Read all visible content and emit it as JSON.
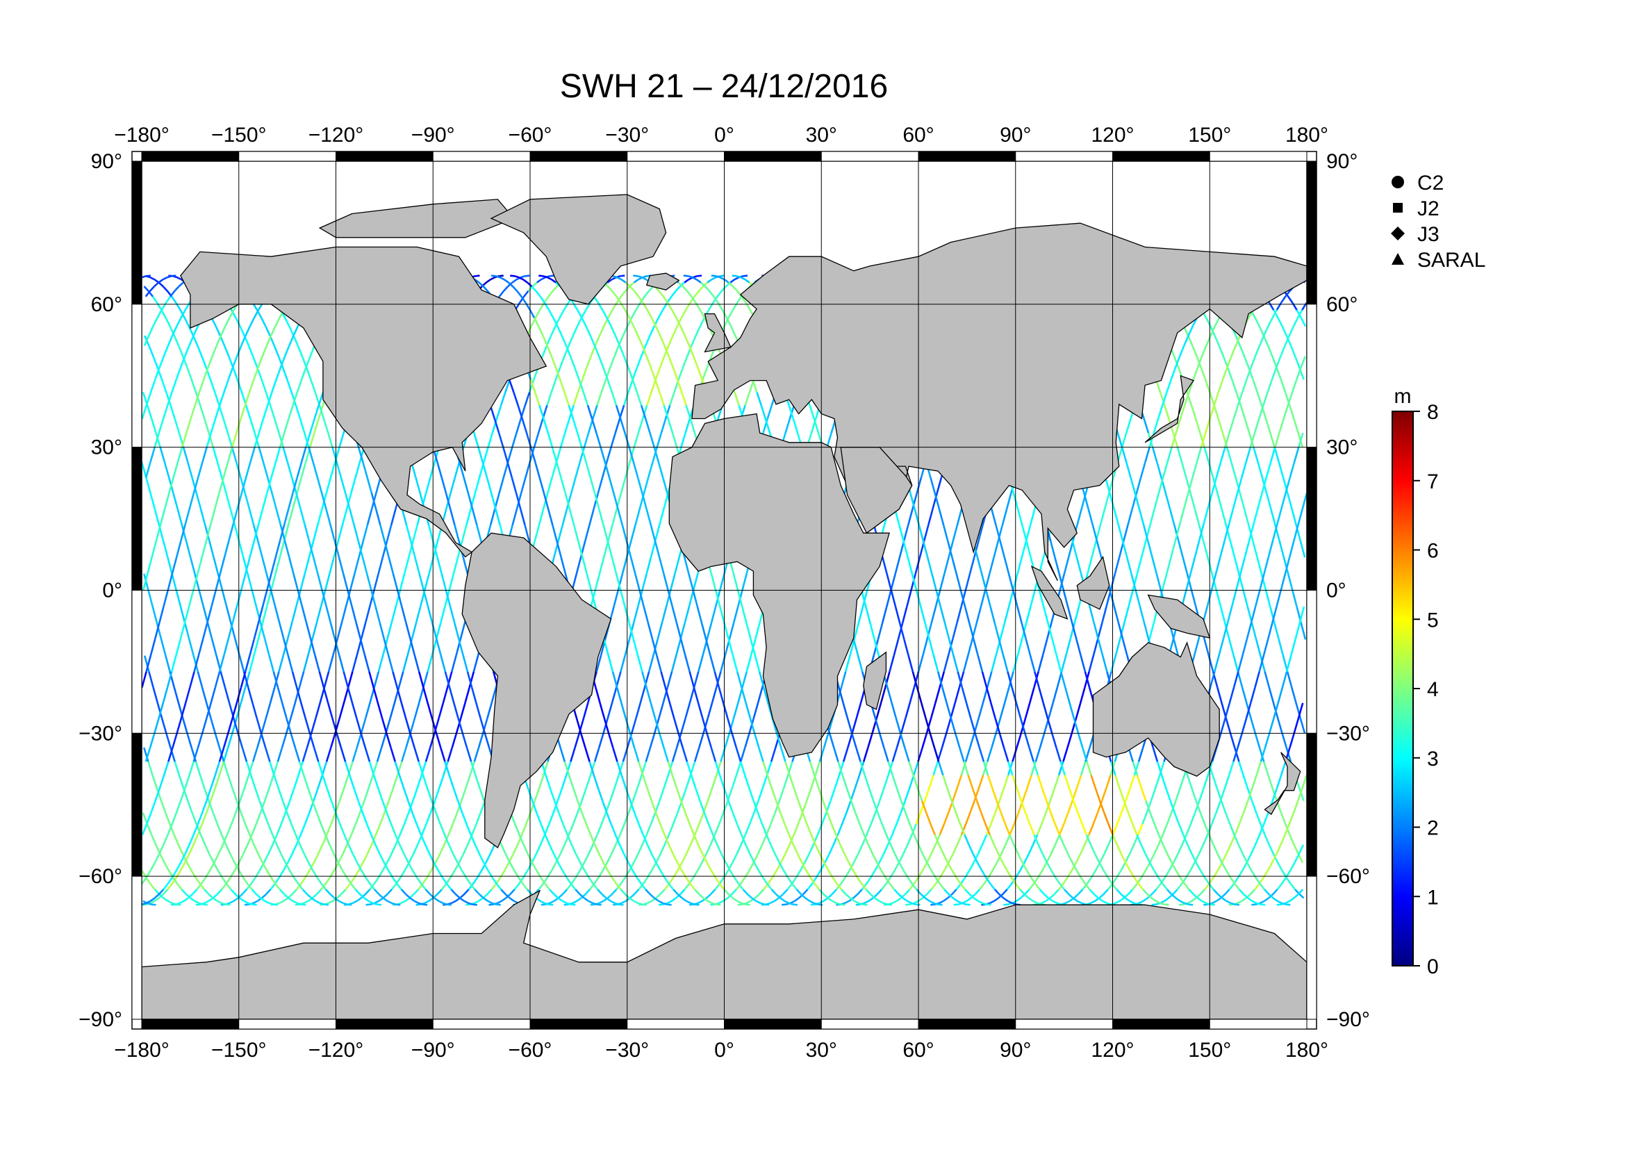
{
  "title": "SWH 21 – 24/12/2016",
  "map": {
    "projection": "equirectangular",
    "lon_range": [
      -180,
      180
    ],
    "lat_range": [
      -90,
      90
    ],
    "lon_ticks": [
      -180,
      -150,
      -120,
      -90,
      -60,
      -30,
      0,
      30,
      60,
      90,
      120,
      150,
      180
    ],
    "lat_ticks": [
      90,
      60,
      30,
      0,
      -30,
      -60,
      -90
    ],
    "lon_tick_labels": [
      "−180°",
      "−150°",
      "−120°",
      "−90°",
      "−60°",
      "−30°",
      "0°",
      "30°",
      "60°",
      "90°",
      "120°",
      "150°",
      "180°"
    ],
    "lat_tick_labels": [
      "90°",
      "60°",
      "30°",
      "0°",
      "−30°",
      "−60°",
      "−90°"
    ],
    "grid": true,
    "land_color": "#bebebe",
    "ocean_color": "#ffffff",
    "frame_color": "#000000"
  },
  "legend": {
    "placement": "right",
    "items": [
      {
        "label": "C2",
        "symbol": "circle"
      },
      {
        "label": "J2",
        "symbol": "square"
      },
      {
        "label": "J3",
        "symbol": "diamond"
      },
      {
        "label": "SARAL",
        "symbol": "triangle"
      }
    ]
  },
  "colorbar": {
    "unit": "m",
    "min": 0,
    "max": 8,
    "ticks": [
      0,
      1,
      2,
      3,
      4,
      5,
      6,
      7,
      8
    ],
    "tick_labels": [
      "0",
      "1",
      "2",
      "3",
      "4",
      "5",
      "6",
      "7",
      "8"
    ],
    "colormap": "jet",
    "stops": [
      "#00007f",
      "#0000ff",
      "#007fff",
      "#00ffff",
      "#7fff7f",
      "#ffff00",
      "#ff7f00",
      "#ff0000",
      "#7f0000"
    ]
  }
}
